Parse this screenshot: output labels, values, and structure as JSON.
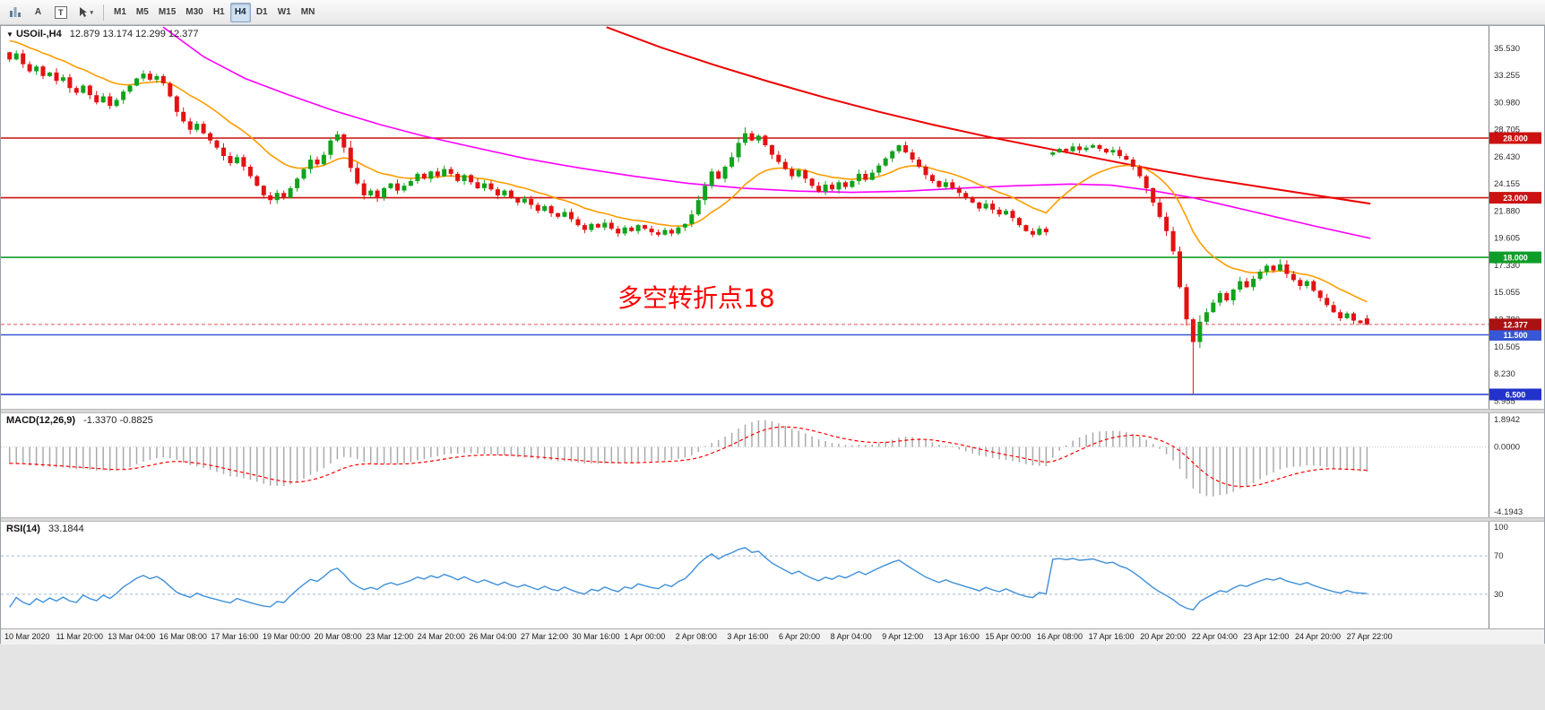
{
  "toolbar": {
    "text_tool_label": "A",
    "frame_tool_label": "T",
    "timeframes": [
      "M1",
      "M5",
      "M15",
      "M30",
      "H1",
      "H4",
      "D1",
      "W1",
      "MN"
    ],
    "active_timeframe": "H4"
  },
  "chart": {
    "symbol_title": "USOil-,H4",
    "ohlc_text": "12.879 13.174 12.299 12.377",
    "annotation": {
      "text": "多空转折点18",
      "color": "#ff0000"
    },
    "price_axis": [
      "35.530",
      "33.255",
      "30.980",
      "28.705",
      "26.430",
      "24.155",
      "21.880",
      "19.605",
      "17.330",
      "15.055",
      "12.780",
      "10.505",
      "8.230",
      "5.955"
    ],
    "hlines": [
      {
        "price": 28.0,
        "label": "28.000",
        "color": "#cc1111"
      },
      {
        "price": 23.0,
        "label": "23.000",
        "color": "#cc1111"
      },
      {
        "price": 18.0,
        "label": "18.000",
        "color": "#0f9d2a"
      },
      {
        "price": 11.5,
        "label": "11.500",
        "color": "#3857d6"
      },
      {
        "price": 6.5,
        "label": "6.500",
        "color": "#2233cc"
      }
    ],
    "current_price": {
      "value": 12.377,
      "label": "12.377",
      "color": "#aa1111"
    }
  },
  "macd": {
    "label": "MACD(12,26,9)",
    "values_text": "-1.3370 -0.8825",
    "axis": [
      "1.8942",
      "0.0000",
      "-4.1943"
    ],
    "ylim": [
      -4.1943,
      1.8942
    ]
  },
  "rsi": {
    "label": "RSI(14)",
    "value_text": "33.1844",
    "axis": [
      "100",
      "70",
      "30"
    ],
    "levels": [
      70,
      30
    ]
  },
  "time_axis": [
    "10 Mar 2020",
    "11 Mar 20:00",
    "13 Mar 04:00",
    "16 Mar 08:00",
    "17 Mar 16:00",
    "19 Mar 00:00",
    "20 Mar 08:00",
    "23 Mar 12:00",
    "24 Mar 20:00",
    "26 Mar 04:00",
    "27 Mar 12:00",
    "30 Mar 16:00",
    "1 Apr 00:00",
    "2 Apr 08:00",
    "3 Apr 16:00",
    "6 Apr 20:00",
    "8 Apr 04:00",
    "9 Apr 12:00",
    "13 Apr 16:00",
    "15 Apr 00:00",
    "16 Apr 08:00",
    "17 Apr 16:00",
    "20 Apr 20:00",
    "22 Apr 04:00",
    "23 Apr 12:00",
    "24 Apr 20:00",
    "27 Apr 22:00"
  ],
  "chart_data": {
    "type": "candlestick",
    "symbol": "USOil-",
    "timeframe": "H4",
    "ylim": [
      5.3,
      37.4
    ],
    "closes": [
      34.6,
      35.1,
      34.2,
      33.6,
      34.0,
      33.2,
      33.5,
      32.8,
      33.1,
      32.2,
      31.8,
      32.4,
      31.6,
      31.0,
      31.5,
      30.7,
      31.2,
      31.9,
      32.4,
      33.0,
      33.4,
      32.9,
      33.2,
      32.6,
      31.5,
      30.2,
      29.4,
      28.7,
      29.2,
      28.4,
      27.8,
      27.2,
      26.5,
      25.9,
      26.4,
      25.6,
      24.8,
      24.0,
      23.2,
      22.8,
      23.4,
      23.0,
      23.8,
      24.6,
      25.4,
      26.2,
      25.8,
      26.6,
      27.8,
      28.3,
      27.2,
      25.5,
      24.2,
      23.2,
      23.6,
      23.0,
      23.8,
      24.2,
      23.6,
      24.0,
      24.4,
      25.0,
      24.6,
      25.2,
      24.8,
      25.4,
      25.0,
      24.4,
      24.9,
      24.3,
      23.8,
      24.2,
      23.7,
      23.2,
      23.6,
      23.0,
      22.6,
      22.9,
      22.4,
      21.9,
      22.3,
      21.7,
      21.4,
      21.8,
      21.2,
      20.7,
      20.3,
      20.8,
      20.5,
      20.9,
      20.4,
      20.0,
      20.5,
      20.2,
      20.7,
      20.4,
      20.1,
      19.9,
      20.3,
      20.0,
      20.5,
      20.8,
      21.6,
      22.8,
      24.0,
      25.2,
      24.6,
      25.6,
      26.4,
      27.6,
      28.4,
      27.8,
      28.2,
      27.4,
      26.6,
      26.0,
      25.4,
      24.8,
      25.3,
      24.6,
      24.0,
      23.5,
      24.1,
      23.7,
      24.3,
      23.9,
      24.4,
      25.0,
      24.5,
      25.1,
      25.7,
      26.3,
      26.9,
      27.4,
      26.8,
      26.2,
      25.6,
      24.9,
      24.4,
      23.9,
      24.3,
      23.8,
      23.4,
      23.0,
      22.6,
      22.1,
      22.5,
      22.0,
      21.6,
      21.9,
      21.3,
      20.7,
      20.2,
      19.9,
      20.4,
      20.1,
      26.8,
      27.1,
      26.9,
      27.3,
      27.0,
      27.2,
      27.4,
      27.1,
      26.8,
      27.0,
      26.5,
      26.2,
      25.6,
      24.8,
      23.8,
      22.6,
      21.4,
      20.2,
      18.5,
      15.5,
      12.8,
      10.9,
      12.6,
      13.4,
      14.2,
      15.0,
      14.4,
      15.3,
      16.0,
      15.5,
      16.2,
      16.8,
      17.3,
      16.9,
      17.4,
      16.6,
      16.1,
      15.6,
      16.0,
      15.2,
      14.6,
      14.0,
      13.4,
      12.9,
      13.3,
      12.7,
      12.5,
      12.377
    ],
    "first_open": 35.2,
    "open_overrides": {
      "156": 26.6
    },
    "high_overrides": {
      "1": 35.35,
      "49": 28.6,
      "110": 28.9,
      "190": 17.85
    },
    "low_overrides": {
      "39": 22.45,
      "177": 6.5
    },
    "last_candle": [
      12.879,
      13.174,
      12.299,
      12.377
    ],
    "warmup": {
      "start": 44.0,
      "end": 35.2,
      "count": 60
    },
    "ma_orange_period": 16,
    "magenta_anchors": [
      [
        0.115,
        37.3
      ],
      [
        0.145,
        34.8
      ],
      [
        0.175,
        33.0
      ],
      [
        0.205,
        31.7
      ],
      [
        0.24,
        30.3
      ],
      [
        0.275,
        29.1
      ],
      [
        0.305,
        28.2
      ],
      [
        0.34,
        27.3
      ],
      [
        0.38,
        26.3
      ],
      [
        0.42,
        25.5
      ],
      [
        0.46,
        24.8
      ],
      [
        0.5,
        24.2
      ],
      [
        0.54,
        23.8
      ],
      [
        0.58,
        23.55
      ],
      [
        0.62,
        23.45
      ],
      [
        0.66,
        23.55
      ],
      [
        0.7,
        23.8
      ],
      [
        0.74,
        24.0
      ],
      [
        0.78,
        24.15
      ],
      [
        0.81,
        24.05
      ],
      [
        0.84,
        23.6
      ],
      [
        0.87,
        23.0
      ],
      [
        0.9,
        22.2
      ],
      [
        0.93,
        21.4
      ],
      [
        0.96,
        20.6
      ],
      [
        1.0,
        19.6
      ]
    ],
    "red_anchors": [
      [
        0.44,
        37.3
      ],
      [
        0.48,
        35.6
      ],
      [
        0.52,
        34.1
      ],
      [
        0.56,
        32.7
      ],
      [
        0.6,
        31.4
      ],
      [
        0.64,
        30.2
      ],
      [
        0.68,
        29.1
      ],
      [
        0.72,
        28.1
      ],
      [
        0.76,
        27.2
      ],
      [
        0.8,
        26.3
      ],
      [
        0.84,
        25.4
      ],
      [
        0.88,
        24.6
      ],
      [
        0.92,
        23.9
      ],
      [
        0.96,
        23.2
      ],
      [
        1.0,
        22.5
      ]
    ],
    "colors": {
      "up": "#11a31b",
      "down": "#e31212",
      "orange_ma": "#ff9c00",
      "magenta_ma": "#ff00ff",
      "red_line": "#ee0000",
      "macd_bar": "#aaaaaa",
      "macd_signal": "#ff0000",
      "rsi_line": "#4090d8",
      "rsi_level": "#9db8d2",
      "bid_line": "#e05555"
    }
  }
}
